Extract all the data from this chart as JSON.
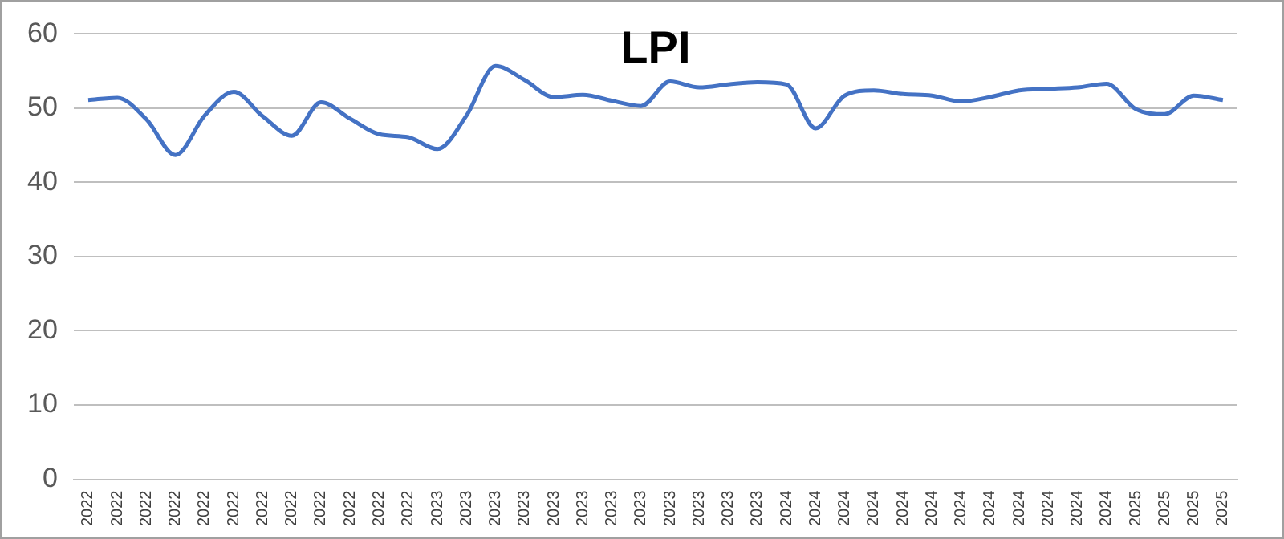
{
  "chart_data": {
    "type": "line",
    "title": "LPI",
    "categories": [
      "2022",
      "2022",
      "2022",
      "2022",
      "2022",
      "2022",
      "2022",
      "2022",
      "2022",
      "2022",
      "2022",
      "2022",
      "2023",
      "2023",
      "2023",
      "2023",
      "2023",
      "2023",
      "2023",
      "2023",
      "2023",
      "2023",
      "2023",
      "2023",
      "2024",
      "2024",
      "2024",
      "2024",
      "2024",
      "2024",
      "2024",
      "2024",
      "2024",
      "2024",
      "2024",
      "2024",
      "2025",
      "2025",
      "2025",
      "2025"
    ],
    "series": [
      {
        "color": "#4472c4",
        "values": [
          51.1,
          51.4,
          48.5,
          43.7,
          49.0,
          52.2,
          48.9,
          46.3,
          50.8,
          48.6,
          46.5,
          46.1,
          44.5,
          49.0,
          55.7,
          53.8,
          51.5,
          51.8,
          51.0,
          50.3,
          53.6,
          52.8,
          53.2,
          53.5,
          53.2,
          47.3,
          51.7,
          52.4,
          51.9,
          51.7,
          50.9,
          51.5,
          52.4,
          52.6,
          52.8,
          53.3,
          49.9,
          49.2,
          51.7,
          51.1
        ]
      }
    ],
    "ylim": [
      0,
      60
    ],
    "yticks": [
      0,
      10,
      20,
      30,
      40,
      50,
      60
    ],
    "grid": "y",
    "legend": false,
    "marker": "none",
    "line_style": "solid"
  }
}
